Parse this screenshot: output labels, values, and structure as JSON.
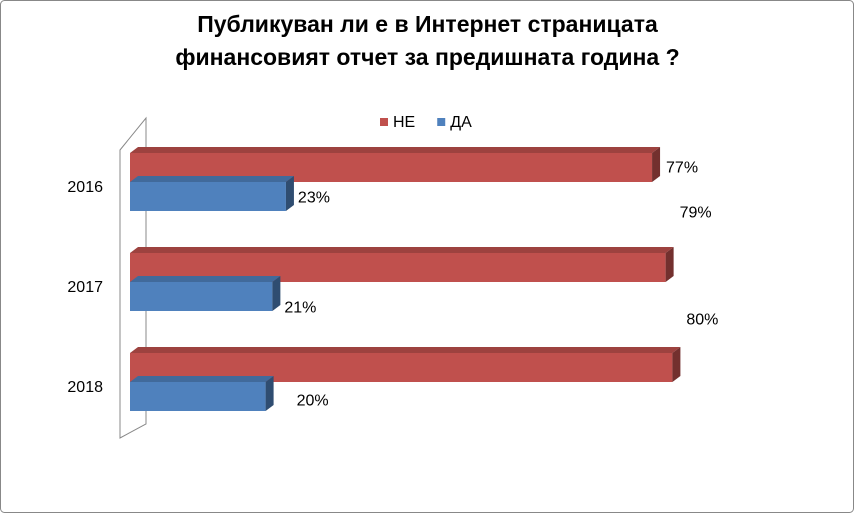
{
  "chart_data": {
    "type": "bar3d-horizontal",
    "title": "Публикуван ли е в Интернет страницата\nфинансовият отчет за предишната година ?",
    "categories": [
      "2016",
      "2017",
      "2018"
    ],
    "series": [
      {
        "name": "НЕ",
        "color": "#c0504d",
        "values": [
          77,
          79,
          80
        ],
        "value_labels": [
          "77%",
          "79%",
          "80%"
        ]
      },
      {
        "name": "ДА",
        "color": "#4f81bd",
        "values": [
          23,
          21,
          20
        ],
        "value_labels": [
          "23%",
          "21%",
          "20%"
        ]
      }
    ],
    "legend": "top"
  }
}
